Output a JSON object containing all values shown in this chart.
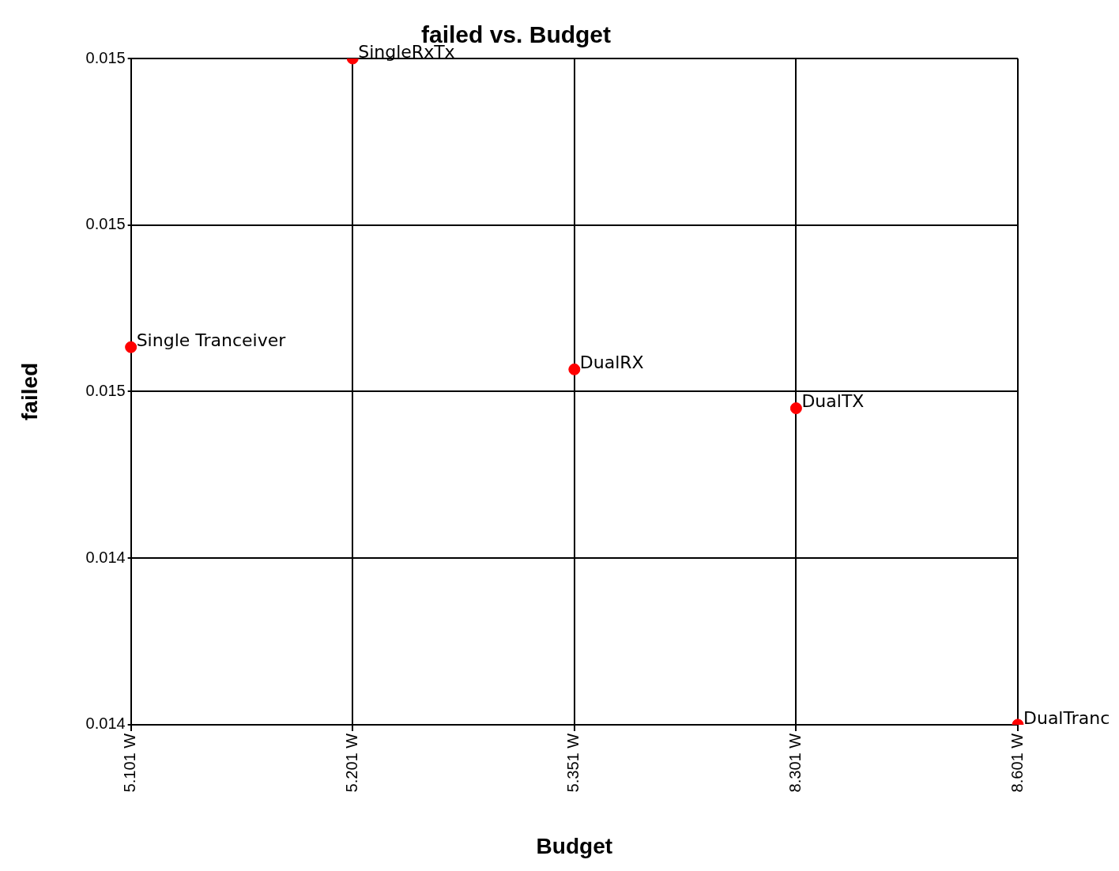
{
  "chart_data": {
    "type": "scatter",
    "title": "failed vs. Budget",
    "xlabel": "Budget",
    "ylabel": "failed",
    "categories": [
      "5.101 W",
      "5.201 W",
      "5.351 W",
      "8.301 W",
      "8.601 W"
    ],
    "series": [
      {
        "color": "#ff0000",
        "values": [
          0.01468,
          0.0152,
          0.01464,
          0.01457,
          0.014
        ]
      }
    ],
    "ylim": [
      0.014,
      0.0152
    ],
    "yticks": [
      {
        "value": 0.014,
        "label": "0.014"
      },
      {
        "value": 0.0143,
        "label": "0.014"
      },
      {
        "value": 0.0146,
        "label": "0.015"
      },
      {
        "value": 0.0149,
        "label": "0.015"
      },
      {
        "value": 0.0152,
        "label": "0.015"
      }
    ],
    "annotations": [
      {
        "text": "Single Tranceiver",
        "x": "5.101 W",
        "y": 0.01468
      },
      {
        "text": "SingleRxTx",
        "x": "5.201 W",
        "y": 0.0152
      },
      {
        "text": "DualRX",
        "x": "5.351 W",
        "y": 0.01464
      },
      {
        "text": "DualTX",
        "x": "8.301 W",
        "y": 0.01457
      },
      {
        "text": "DualTranc",
        "x": "8.601 W",
        "y": 0.014
      }
    ],
    "grid": true,
    "legend": false,
    "marker": "circle"
  }
}
